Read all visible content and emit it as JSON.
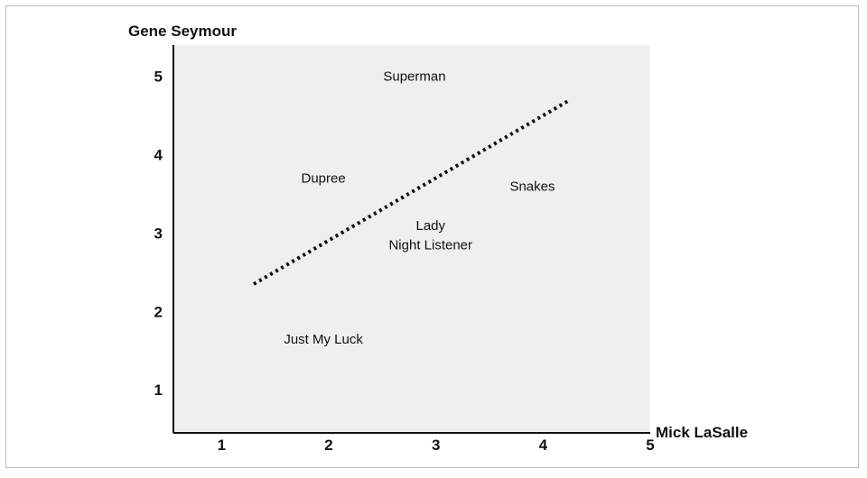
{
  "chart_data": {
    "type": "scatter",
    "title": "",
    "xlabel": "Mick LaSalle",
    "ylabel": "Gene Seymour",
    "xlim": [
      0.55,
      5.0
    ],
    "ylim": [
      0.45,
      5.4
    ],
    "x_ticks": [
      "1",
      "2",
      "3",
      "4",
      "5"
    ],
    "y_ticks": [
      "1",
      "2",
      "3",
      "4",
      "5"
    ],
    "points": [
      {
        "label": "Superman",
        "x": 2.8,
        "y": 5.0
      },
      {
        "label": "Dupree",
        "x": 1.95,
        "y": 3.7
      },
      {
        "label": "Snakes",
        "x": 3.9,
        "y": 3.6
      },
      {
        "label": "Lady",
        "x": 2.95,
        "y": 3.1
      },
      {
        "label": "Night Listener",
        "x": 2.95,
        "y": 2.85
      },
      {
        "label": "Just My Luck",
        "x": 1.95,
        "y": 1.65
      }
    ],
    "trendline": {
      "style": "dotted",
      "x": [
        1.3,
        4.25
      ],
      "y": [
        2.35,
        4.7
      ]
    },
    "plot_background": "#efefef",
    "grid": false
  }
}
